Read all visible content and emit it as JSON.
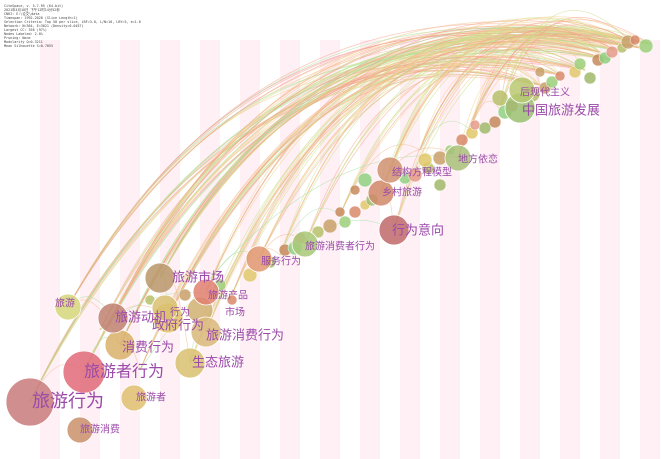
{
  "header_lines": [
    "CiteSpace, v. 5.7.R5 (64-bit)",
    "2021年4月10日 下午12时14分52秒",
    "CNKI: E:\\论文\\data",
    "Timespan: 1992-2020 (Slice Length=1)",
    "Selection Criteria: Top 50 per slice, LRF=3.0, L/N=10, LBY=5, e=1.0",
    "Network: N=364, E=3021 (Density=0.0457)",
    "Largest CC: 356 (97%)",
    "Nodes Labeled: 2.0%",
    "Pruning: None",
    "Modularity Q=0.3211",
    "Mean Silhouette S=0.7055"
  ],
  "colors": {
    "background": "#ffffff",
    "year_band": "#fff0f5",
    "label": "#9a4aa8"
  },
  "keywords": [
    {
      "label": "旅游行为",
      "year": 1992,
      "size": "xl",
      "color": "#c97a7a"
    },
    {
      "label": "旅游消费",
      "year": 1993,
      "size": "s",
      "color": "#c9906a"
    },
    {
      "label": "旅游者行为",
      "year": 1995,
      "size": "l",
      "color": "#e06a78"
    },
    {
      "label": "旅游者",
      "year": 1996,
      "size": "s",
      "color": "#e0c070"
    },
    {
      "label": "消费行为",
      "year": 1997,
      "size": "m",
      "color": "#d9b06a"
    },
    {
      "label": "旅游",
      "year": 1993,
      "size": "s",
      "color": "#d6d67a"
    },
    {
      "label": "旅游动机",
      "year": 1996,
      "size": "m",
      "color": "#c08070"
    },
    {
      "label": "政府行为",
      "year": 1999,
      "size": "m",
      "color": "#e2c46a"
    },
    {
      "label": "行为",
      "year": 1999,
      "size": "s",
      "color": "#d8c070"
    },
    {
      "label": "旅游市场",
      "year": 2000,
      "size": "m",
      "color": "#b9966a"
    },
    {
      "label": "市场",
      "year": 2001,
      "size": "s",
      "color": "#d0b070"
    },
    {
      "label": "生态旅游",
      "year": 2001,
      "size": "m",
      "color": "#d8c070"
    },
    {
      "label": "旅游消费行为",
      "year": 2002,
      "size": "m",
      "color": "#d9b87a"
    },
    {
      "label": "旅游产品",
      "year": 2002,
      "size": "s",
      "color": "#e08070"
    },
    {
      "label": "服务行为",
      "year": 2004,
      "size": "s",
      "color": "#e09870"
    },
    {
      "label": "旅游消费者行为",
      "year": 2006,
      "size": "s",
      "color": "#a8c878"
    },
    {
      "label": "行为意向",
      "year": 2009,
      "size": "m",
      "color": "#c06868"
    },
    {
      "label": "乡村旅游",
      "year": 2008,
      "size": "s",
      "color": "#d08868"
    },
    {
      "label": "结构方程模型",
      "year": 2009,
      "size": "s",
      "color": "#d09070"
    },
    {
      "label": "地方依恋",
      "year": 2011,
      "size": "s",
      "color": "#a8c078"
    },
    {
      "label": "中国旅游发展",
      "year": 2013,
      "size": "m",
      "color": "#9ac070"
    },
    {
      "label": "后现代主义",
      "year": 2013,
      "size": "s",
      "color": "#b8c870"
    }
  ]
}
